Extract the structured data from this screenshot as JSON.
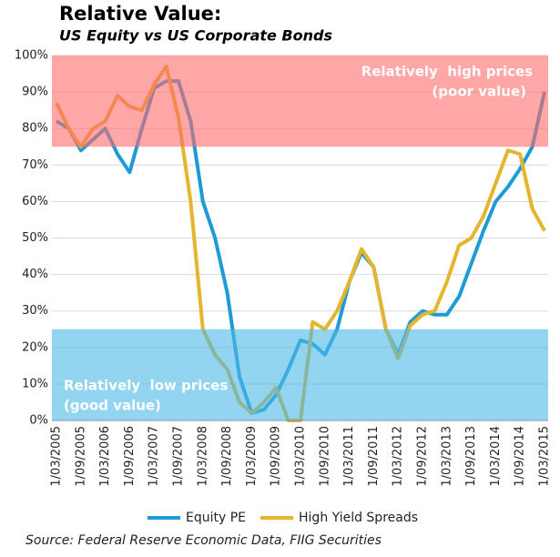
{
  "chart_data": {
    "type": "line",
    "title": "Relative Value:",
    "subtitle": "US Equity vs US Corporate Bonds",
    "source": "Source: Federal Reserve Economic Data, FIIG Securities",
    "categories": [
      "1/03/2005",
      null,
      "1/09/2005",
      null,
      "1/03/2006",
      null,
      "1/09/2006",
      null,
      "1/03/2007",
      null,
      "1/09/2007",
      null,
      "1/03/2008",
      null,
      "1/09/2008",
      null,
      "1/03/2009",
      null,
      "1/09/2009",
      null,
      "1/03/2010",
      null,
      "1/09/2010",
      null,
      "1/03/2011",
      null,
      "1/09/2011",
      null,
      "1/03/2012",
      null,
      "1/09/2012",
      null,
      "1/03/2013",
      null,
      "1/09/2013",
      null,
      "1/03/2014",
      null,
      "1/09/2014",
      null,
      "1/03/2015"
    ],
    "series": [
      {
        "name": "Equity PE",
        "color": "#1e9bd7",
        "values": [
          82,
          80,
          74,
          77,
          80,
          73,
          68,
          80,
          91,
          93,
          93,
          82,
          60,
          50,
          35,
          12,
          2,
          3,
          7,
          14,
          22,
          21,
          18,
          25,
          38,
          46,
          42,
          25,
          18,
          27,
          30,
          29,
          29,
          34,
          43,
          52,
          60,
          64,
          69,
          75,
          90
        ]
      },
      {
        "name": "High Yield Spreads",
        "color": "#e6b52e",
        "values": [
          87,
          80,
          75,
          80,
          82,
          89,
          86,
          85,
          92,
          97,
          83,
          60,
          25,
          18,
          14,
          5,
          2,
          5,
          9,
          0,
          0,
          27,
          25,
          30,
          38,
          47,
          42,
          25,
          17,
          26,
          29,
          30,
          38,
          48,
          50,
          56,
          65,
          74,
          73,
          58,
          52
        ]
      }
    ],
    "bands": [
      {
        "from": 75,
        "to": 100,
        "color": "#ff6b6b",
        "label": [
          "Relatively  high prices",
          "(poor value)"
        ]
      },
      {
        "from": 0,
        "to": 25,
        "color": "#4bb8e8",
        "label": [
          "Relatively  low prices",
          "(good value)"
        ]
      }
    ],
    "ylim": [
      0,
      100
    ],
    "yticks": [
      {
        "value": 0,
        "label": "0%"
      },
      {
        "value": 10,
        "label": "10%"
      },
      {
        "value": 20,
        "label": "20%"
      },
      {
        "value": 30,
        "label": "30%"
      },
      {
        "value": 40,
        "label": "40%"
      },
      {
        "value": 50,
        "label": "50%"
      },
      {
        "value": 60,
        "label": "60%"
      },
      {
        "value": 70,
        "label": "70%"
      },
      {
        "value": 80,
        "label": "80%"
      },
      {
        "value": 90,
        "label": "90%"
      },
      {
        "value": 100,
        "label": "100%"
      }
    ],
    "grid": true
  }
}
